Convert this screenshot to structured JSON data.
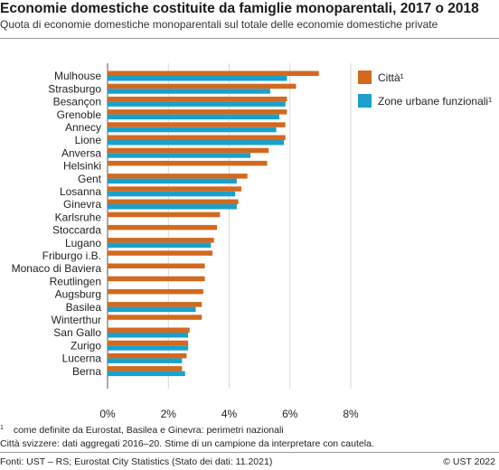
{
  "header": {
    "title": "Economie domestiche costituite da famiglie monoparentali, 2017 o 2018",
    "subtitle": "Quota di economie domestiche monoparentali sul totale delle economie domestiche private"
  },
  "chart_data": {
    "type": "bar",
    "orientation": "horizontal",
    "categories": [
      "Mulhouse",
      "Strasburgo",
      "Besançon",
      "Grenoble",
      "Annecy",
      "Lione",
      "Anversa",
      "Helsinki",
      "Gent",
      "Losanna",
      "Ginevra",
      "Karlsruhe",
      "Stoccarda",
      "Lugano",
      "Friburgo i.B.",
      "Monaco di Baviera",
      "Reutlingen",
      "Augsburg",
      "Basilea",
      "Winterthur",
      "San Gallo",
      "Zurigo",
      "Lucerna",
      "Berna"
    ],
    "series": [
      {
        "name": "Città¹",
        "color": "#d2691e",
        "values": [
          6.95,
          6.2,
          5.9,
          5.9,
          5.85,
          5.85,
          5.3,
          5.25,
          4.6,
          4.4,
          4.3,
          3.7,
          3.6,
          3.5,
          3.45,
          3.2,
          3.2,
          3.15,
          3.1,
          3.1,
          2.7,
          2.65,
          2.6,
          2.45
        ]
      },
      {
        "name": "Zone urbane funzionali¹",
        "color": "#1aa0cc",
        "values": [
          5.9,
          5.35,
          5.85,
          5.65,
          5.55,
          5.8,
          4.7,
          null,
          4.25,
          4.2,
          4.25,
          null,
          null,
          3.4,
          null,
          null,
          null,
          null,
          2.9,
          null,
          2.65,
          2.65,
          2.45,
          2.55
        ]
      }
    ],
    "x_ticks": [
      "0%",
      "2%",
      "4%",
      "6%",
      "8%"
    ],
    "xlim": [
      0,
      8
    ],
    "grid": true,
    "legend_position": "top-right"
  },
  "footer": {
    "note1_mark": "1",
    "note1": "come definite da Eurostat, Basilea e Ginevra: perimetri nazionali",
    "note2": "Città svizzere: dati aggregati 2016–20. Stime di un campione da interpretare con cautela.",
    "source": "Fonti: UST – RS; Eurostat City Statistics (Stato dei dati: 11.2021)",
    "copyright": "© UST 2022"
  }
}
